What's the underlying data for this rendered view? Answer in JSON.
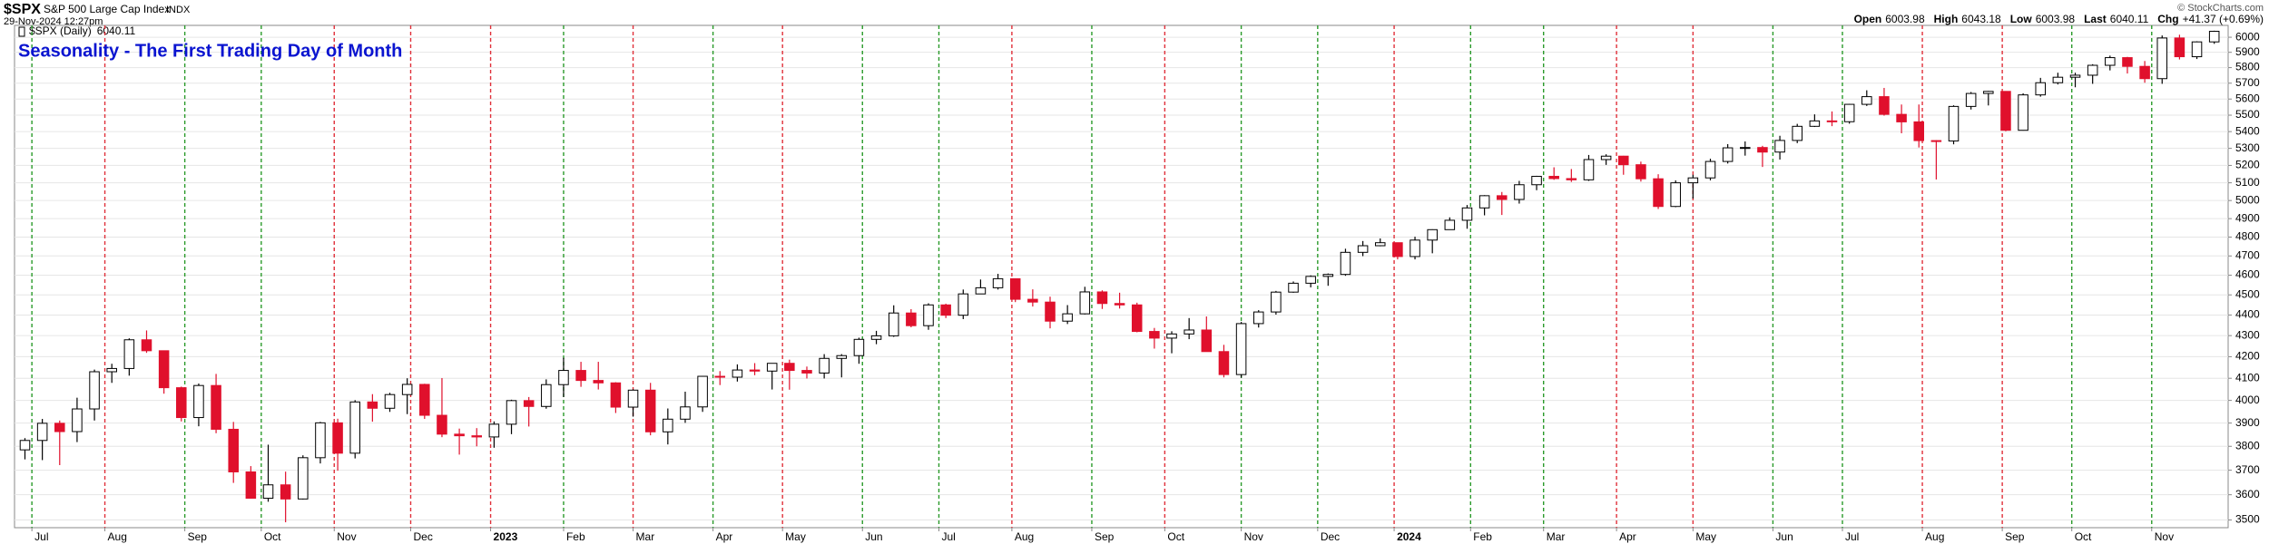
{
  "header": {
    "symbol": "$SPX",
    "name": "S&P 500 Large Cap Index",
    "exchange": "INDX",
    "date": "29-Nov-2024 12:27pm",
    "copyright": "© StockCharts.com",
    "quote": [
      {
        "label": "Open",
        "value": 6003.98
      },
      {
        "label": "High",
        "value": 6043.18
      },
      {
        "label": "Low",
        "value": 6003.98
      },
      {
        "label": "Last",
        "value": 6040.11
      },
      {
        "label": "Chg",
        "value": "+41.37 (+0.69%)"
      }
    ]
  },
  "chart_data": {
    "type": "candlestick",
    "title": "Seasonality - The First Trading Day of Month",
    "legend": "$SPX (Daily)",
    "log_scale": true,
    "grid": true,
    "up_color": "#ffffff",
    "up_edge": "#000000",
    "down_color": "#e0102c",
    "xlim": [
      -0.6,
      126.8
    ],
    "ylim": [
      3470,
      6080
    ],
    "yticks": [
      3500,
      3600,
      3700,
      3800,
      3900,
      4000,
      4100,
      4200,
      4300,
      4400,
      4500,
      4600,
      4700,
      4800,
      4900,
      5000,
      5100,
      5200,
      5300,
      5400,
      5500,
      5600,
      5700,
      5800,
      5900,
      6000
    ],
    "xticks": [
      {
        "value": 0.4,
        "label": "Jul",
        "color": "#2a9a2a"
      },
      {
        "value": 4.6,
        "label": "Aug",
        "color": "#e0303a"
      },
      {
        "value": 9.2,
        "label": "Sep",
        "color": "#2a9a2a"
      },
      {
        "value": 13.6,
        "label": "Oct",
        "color": "#2a9a2a"
      },
      {
        "value": 17.8,
        "label": "Nov",
        "color": "#e0303a"
      },
      {
        "value": 22.2,
        "label": "Dec",
        "color": "#e0303a"
      },
      {
        "value": 26.8,
        "label": "2023",
        "color": "#e0303a"
      },
      {
        "value": 31.0,
        "label": "Feb",
        "color": "#2a9a2a"
      },
      {
        "value": 35.0,
        "label": "Mar",
        "color": "#e0303a"
      },
      {
        "value": 39.6,
        "label": "Apr",
        "color": "#2a9a2a"
      },
      {
        "value": 43.6,
        "label": "May",
        "color": "#e0303a"
      },
      {
        "value": 48.2,
        "label": "Jun",
        "color": "#2a9a2a"
      },
      {
        "value": 52.6,
        "label": "Jul",
        "color": "#2a9a2a"
      },
      {
        "value": 56.8,
        "label": "Aug",
        "color": "#e0303a"
      },
      {
        "value": 61.4,
        "label": "Sep",
        "color": "#2a9a2a"
      },
      {
        "value": 65.6,
        "label": "Oct",
        "color": "#e0303a"
      },
      {
        "value": 70.0,
        "label": "Nov",
        "color": "#2a9a2a"
      },
      {
        "value": 74.4,
        "label": "Dec",
        "color": "#2a9a2a"
      },
      {
        "value": 78.8,
        "label": "2024",
        "color": "#e0303a"
      },
      {
        "value": 83.2,
        "label": "Feb",
        "color": "#2a9a2a"
      },
      {
        "value": 87.4,
        "label": "Mar",
        "color": "#2a9a2a"
      },
      {
        "value": 91.6,
        "label": "Apr",
        "color": "#e0303a"
      },
      {
        "value": 96.0,
        "label": "May",
        "color": "#e0303a"
      },
      {
        "value": 100.6,
        "label": "Jun",
        "color": "#2a9a2a"
      },
      {
        "value": 104.6,
        "label": "Jul",
        "color": "#2a9a2a"
      },
      {
        "value": 109.2,
        "label": "Aug",
        "color": "#e0303a"
      },
      {
        "value": 113.8,
        "label": "Sep",
        "color": "#e0303a"
      },
      {
        "value": 117.8,
        "label": "Oct",
        "color": "#2a9a2a"
      },
      {
        "value": 122.4,
        "label": "Nov",
        "color": "#2a9a2a"
      }
    ],
    "candles": {
      "open": [
        3785,
        3825,
        3899,
        3863,
        3962,
        4130,
        4145,
        4280,
        4228,
        4057,
        3924,
        4067,
        3873,
        3693,
        3586,
        3640,
        3583,
        3752,
        3901,
        3771,
        3993,
        3965,
        4026,
        4072,
        3934,
        3852,
        3845,
        3840,
        3895,
        3999,
        3973,
        4071,
        4136,
        4090,
        4079,
        3970,
        4046,
        3862,
        3917,
        3971,
        4109,
        4105,
        4138,
        4133,
        4169,
        4136,
        4124,
        4192,
        4205,
        4282,
        4299,
        4410,
        4348,
        4450,
        4399,
        4505,
        4536,
        4582,
        4478,
        4464,
        4370,
        4406,
        4515,
        4457,
        4450,
        4320,
        4288,
        4308,
        4327,
        4224,
        4117,
        4358,
        4415,
        4514,
        4559,
        4594,
        4604,
        4719,
        4754,
        4770,
        4697,
        4784,
        4840,
        4891,
        4959,
        5027,
        5006,
        5089,
        5137,
        5124,
        5117,
        5234,
        5254,
        5204,
        5123,
        4967,
        5100,
        5128,
        5223,
        5303,
        5305,
        5278,
        5347,
        5432,
        5465,
        5460,
        5567,
        5615,
        5505,
        5459,
        5346,
        5344,
        5554,
        5635,
        5648,
        5408,
        5626,
        5703,
        5738,
        5751,
        5815,
        5865,
        5808,
        5729,
        5995,
        5871,
        5969
      ],
      "high": [
        3835,
        3918,
        3911,
        4012,
        4140,
        4167,
        4287,
        4325,
        4218,
        4062,
        4076,
        4120,
        3905,
        3717,
        3807,
        3694,
        3762,
        3905,
        3919,
        4001,
        4028,
        4034,
        4100,
        4075,
        4101,
        3876,
        3878,
        3907,
        4003,
        4015,
        4095,
        4195,
        4176,
        4176,
        4082,
        4050,
        4079,
        3964,
        4039,
        4110,
        4133,
        4164,
        4170,
        4170,
        4186,
        4154,
        4212,
        4212,
        4290,
        4323,
        4448,
        4429,
        4458,
        4456,
        4527,
        4578,
        4607,
        4584,
        4528,
        4491,
        4449,
        4541,
        4523,
        4511,
        4461,
        4337,
        4321,
        4385,
        4393,
        4256,
        4366,
        4424,
        4520,
        4568,
        4599,
        4609,
        4738,
        4779,
        4793,
        4764,
        4802,
        4842,
        4907,
        4975,
        5030,
        5048,
        5111,
        5140,
        5189,
        5179,
        5261,
        5265,
        5256,
        5222,
        5149,
        5114,
        5146,
        5239,
        5325,
        5341,
        5315,
        5375,
        5447,
        5505,
        5523,
        5570,
        5655,
        5670,
        5566,
        5566,
        5349,
        5561,
        5644,
        5651,
        5650,
        5636,
        5734,
        5767,
        5767,
        5822,
        5878,
        5870,
        5843,
        6012,
        6017,
        5973,
        6044
      ],
      "low": [
        3745,
        3742,
        3721,
        3818,
        3911,
        4079,
        4112,
        4218,
        4030,
        3907,
        3886,
        3856,
        3648,
        3584,
        3572,
        3491,
        3581,
        3728,
        3698,
        3749,
        3906,
        3949,
        3939,
        3918,
        3839,
        3765,
        3800,
        3794,
        3852,
        3885,
        3963,
        4015,
        4061,
        4049,
        3944,
        3928,
        3847,
        3808,
        3901,
        3949,
        4069,
        4085,
        4114,
        4049,
        4048,
        4099,
        4099,
        4104,
        4167,
        4259,
        4294,
        4340,
        4328,
        4385,
        4380,
        4504,
        4527,
        4464,
        4442,
        4335,
        4356,
        4403,
        4430,
        4432,
        4316,
        4238,
        4216,
        4283,
        4223,
        4104,
        4103,
        4339,
        4402,
        4511,
        4538,
        4546,
        4597,
        4699,
        4751,
        4682,
        4682,
        4714,
        4844,
        4845,
        4918,
        4920,
        4983,
        5058,
        5117,
        5105,
        5111,
        5203,
        5146,
        5107,
        4953,
        4963,
        5011,
        5114,
        5211,
        5257,
        5191,
        5234,
        5331,
        5428,
        5433,
        5448,
        5557,
        5497,
        5390,
        5305,
        5119,
        5324,
        5535,
        5560,
        5402,
        5406,
        5615,
        5692,
        5674,
        5696,
        5782,
        5762,
        5703,
        5696,
        5853,
        5856,
        5956
      ],
      "close": [
        3825,
        3899,
        3863,
        3962,
        4130,
        4145,
        4280,
        4228,
        4057,
        3924,
        4067,
        3873,
        3693,
        3586,
        3640,
        3583,
        3752,
        3901,
        3771,
        3993,
        3965,
        4026,
        4072,
        3934,
        3852,
        3845,
        3840,
        3895,
        3999,
        3973,
        4071,
        4136,
        4090,
        4079,
        3970,
        4046,
        3862,
        3917,
        3971,
        4109,
        4105,
        4138,
        4133,
        4169,
        4136,
        4124,
        4192,
        4205,
        4282,
        4299,
        4410,
        4348,
        4450,
        4399,
        4505,
        4536,
        4582,
        4478,
        4464,
        4370,
        4406,
        4515,
        4457,
        4450,
        4320,
        4288,
        4308,
        4327,
        4224,
        4117,
        4358,
        4415,
        4514,
        4559,
        4594,
        4604,
        4719,
        4754,
        4770,
        4697,
        4784,
        4840,
        4891,
        4959,
        5027,
        5006,
        5089,
        5137,
        5124,
        5117,
        5234,
        5254,
        5204,
        5123,
        4967,
        5100,
        5128,
        5223,
        5303,
        5305,
        5278,
        5347,
        5432,
        5465,
        5460,
        5567,
        5615,
        5505,
        5459,
        5346,
        5344,
        5554,
        5635,
        5648,
        5408,
        5626,
        5703,
        5738,
        5751,
        5815,
        5865,
        5808,
        5729,
        5995,
        5871,
        5969,
        6040.11
      ]
    }
  }
}
